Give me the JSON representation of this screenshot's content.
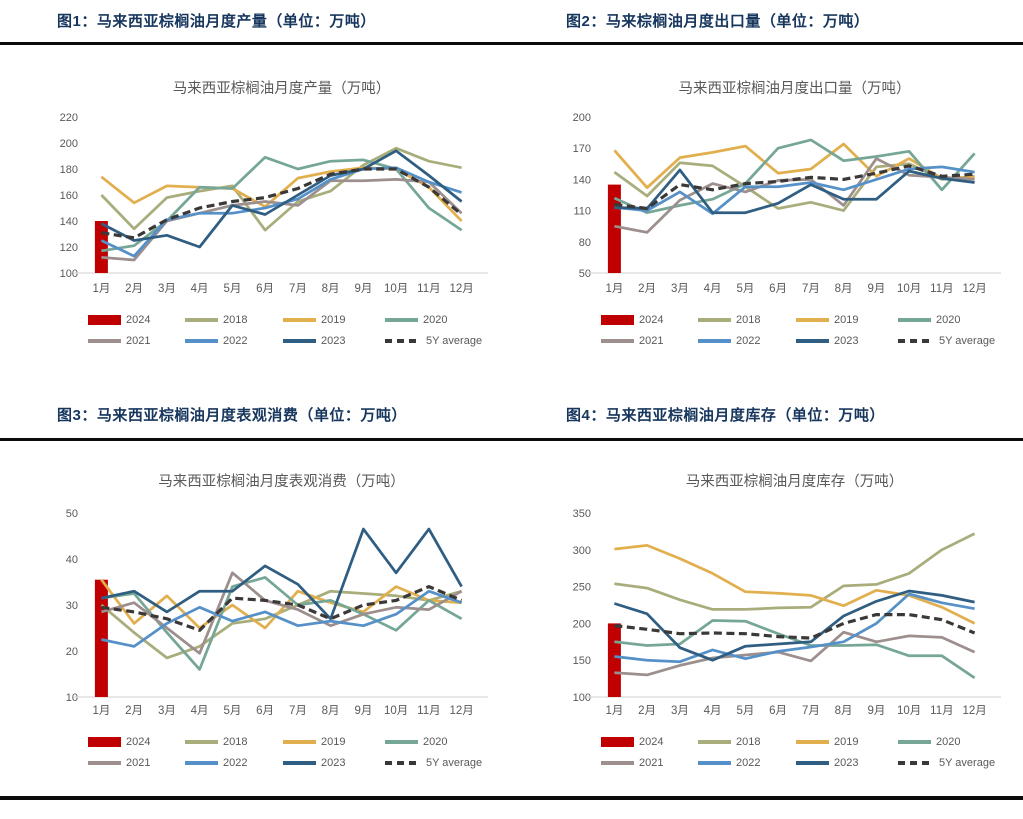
{
  "titles": {
    "fig1": "图1：马来西亚棕榈油月度产量（单位：万吨）",
    "fig2": "图2：马来棕榈油月度出口量（单位：万吨）",
    "fig3": "图3：马来西亚棕榈油月度表观消费（单位：万吨）",
    "fig4": "图4：马来西亚棕榈油月度库存（单位：万吨）"
  },
  "colors": {
    "title_navy": "#17365D",
    "rule_black": "#0B0B0B",
    "axis_text": "#595959",
    "axis_line": "#D9D9D9",
    "y2024": "#C00000",
    "y2018": "#A9AD7B",
    "y2019": "#E2AF4E",
    "y2020": "#76A796",
    "y2021": "#9C8F8D",
    "y2022": "#5591C8",
    "y2023": "#2F5E82",
    "avg5y": "#3B3838"
  },
  "legend_labels": [
    "2024",
    "2018",
    "2019",
    "2020",
    "2021",
    "2022",
    "2023",
    "5Y average"
  ],
  "chart_data": [
    {
      "type": "line",
      "title": "马来西亚棕榈油月度产量（万吨）",
      "categories": [
        "1月",
        "2月",
        "3月",
        "4月",
        "5月",
        "6月",
        "7月",
        "8月",
        "9月",
        "10月",
        "11月",
        "12月"
      ],
      "ylim": [
        100,
        220
      ],
      "ytick_step": 20,
      "grid": false,
      "legend_position": "bottom",
      "bar_series": {
        "name": "2024",
        "color": "#C00000",
        "values": [
          140
        ]
      },
      "series": [
        {
          "name": "2018",
          "color": "#A9AD7B",
          "values": [
            160,
            134,
            158,
            163,
            167,
            133,
            155,
            163,
            183,
            196,
            186,
            181
          ]
        },
        {
          "name": "2019",
          "color": "#E2AF4E",
          "values": [
            174,
            154,
            167,
            166,
            165,
            151,
            173,
            178,
            181,
            180,
            166,
            140
          ]
        },
        {
          "name": "2020",
          "color": "#76A796",
          "values": [
            117,
            121,
            140,
            166,
            165,
            189,
            180,
            186,
            187,
            180,
            150,
            133
          ]
        },
        {
          "name": "2021",
          "color": "#9C8F8D",
          "values": [
            112,
            110,
            140,
            146,
            152,
            155,
            152,
            171,
            171,
            172,
            170,
            146
          ]
        },
        {
          "name": "2022",
          "color": "#5591C8",
          "values": [
            125,
            113,
            141,
            146,
            146,
            150,
            157,
            172,
            180,
            181,
            170,
            162
          ]
        },
        {
          "name": "2023",
          "color": "#2F5E82",
          "values": [
            138,
            125,
            129,
            120,
            152,
            145,
            160,
            175,
            180,
            194,
            175,
            155
          ]
        },
        {
          "name": "5Y average",
          "color": "#3B3838",
          "dashed": true,
          "values": [
            131,
            127,
            141,
            150,
            155,
            158,
            165,
            176,
            180,
            180,
            166,
            145
          ]
        }
      ]
    },
    {
      "type": "line",
      "title": "马来西亚棕榈油月度出口量（万吨）",
      "categories": [
        "1月",
        "2月",
        "3月",
        "4月",
        "5月",
        "6月",
        "7月",
        "8月",
        "9月",
        "10月",
        "11月",
        "12月"
      ],
      "ylim": [
        50,
        200
      ],
      "ytick_step": 30,
      "grid": false,
      "legend_position": "bottom",
      "bar_series": {
        "name": "2024",
        "color": "#C00000",
        "values": [
          135
        ]
      },
      "series": [
        {
          "name": "2018",
          "color": "#A9AD7B",
          "values": [
            147,
            124,
            156,
            153,
            133,
            112,
            118,
            110,
            152,
            155,
            140,
            143
          ]
        },
        {
          "name": "2019",
          "color": "#E2AF4E",
          "values": [
            168,
            132,
            161,
            166,
            172,
            146,
            150,
            174,
            143,
            160,
            141,
            142
          ]
        },
        {
          "name": "2020",
          "color": "#76A796",
          "values": [
            122,
            108,
            115,
            121,
            136,
            170,
            178,
            158,
            162,
            167,
            130,
            165
          ]
        },
        {
          "name": "2021",
          "color": "#9C8F8D",
          "values": [
            95,
            89,
            120,
            136,
            128,
            139,
            140,
            115,
            160,
            144,
            142,
            140
          ]
        },
        {
          "name": "2022",
          "color": "#5591C8",
          "values": [
            113,
            110,
            128,
            107,
            133,
            133,
            137,
            130,
            140,
            150,
            152,
            147
          ]
        },
        {
          "name": "2023",
          "color": "#2F5E82",
          "values": [
            113,
            112,
            149,
            108,
            108,
            117,
            135,
            121,
            121,
            148,
            141,
            137
          ]
        },
        {
          "name": "5Y average",
          "color": "#3B3838",
          "dashed": true,
          "values": [
            116,
            112,
            135,
            130,
            136,
            138,
            142,
            140,
            146,
            153,
            143,
            145
          ]
        }
      ]
    },
    {
      "type": "line",
      "title": "马来西亚棕榈油月度表观消费（万吨）",
      "categories": [
        "1月",
        "2月",
        "3月",
        "4月",
        "5月",
        "6月",
        "7月",
        "8月",
        "9月",
        "10月",
        "11月",
        "12月"
      ],
      "ylim": [
        10,
        50
      ],
      "ytick_step": 10,
      "grid": false,
      "legend_position": "bottom",
      "bar_series": {
        "name": "2024",
        "color": "#C00000",
        "values": [
          35.5
        ]
      },
      "series": [
        {
          "name": "2018",
          "color": "#A9AD7B",
          "values": [
            30,
            24,
            18.5,
            21,
            26,
            27,
            30,
            33,
            32.5,
            32,
            31,
            33
          ]
        },
        {
          "name": "2019",
          "color": "#E2AF4E",
          "values": [
            35.5,
            26,
            32,
            25,
            30,
            25,
            33,
            30.5,
            28.5,
            34,
            31,
            30.5
          ]
        },
        {
          "name": "2020",
          "color": "#76A796",
          "values": [
            31.5,
            32.5,
            24,
            16,
            34,
            36,
            30,
            31,
            28,
            24.5,
            31,
            27
          ]
        },
        {
          "name": "2021",
          "color": "#9C8F8D",
          "values": [
            28.5,
            30.5,
            25,
            19.5,
            37,
            31,
            29,
            25.5,
            28,
            29.5,
            29,
            33
          ]
        },
        {
          "name": "2022",
          "color": "#5591C8",
          "values": [
            22.5,
            21,
            26,
            29.5,
            26.5,
            28.5,
            25.5,
            26.5,
            25.5,
            28,
            33,
            30.5
          ]
        },
        {
          "name": "2023",
          "color": "#2F5E82",
          "values": [
            31.5,
            33,
            28.5,
            33,
            33,
            38.5,
            34.5,
            27,
            46.5,
            37,
            46.5,
            34
          ]
        },
        {
          "name": "5Y average",
          "color": "#3B3838",
          "dashed": true,
          "values": [
            29.5,
            28.5,
            27,
            24.5,
            31.5,
            31,
            30,
            27,
            30,
            31,
            34,
            31
          ]
        }
      ]
    },
    {
      "type": "line",
      "title": "马来西亚棕榈油月度库存（万吨）",
      "categories": [
        "1月",
        "2月",
        "3月",
        "4月",
        "5月",
        "6月",
        "7月",
        "8月",
        "9月",
        "10月",
        "11月",
        "12月"
      ],
      "ylim": [
        100,
        350
      ],
      "ytick_step": 50,
      "grid": false,
      "legend_position": "bottom",
      "bar_series": {
        "name": "2024",
        "color": "#C00000",
        "values": [
          200
        ]
      },
      "series": [
        {
          "name": "2018",
          "color": "#A9AD7B",
          "values": [
            254,
            248,
            232,
            219,
            219,
            221,
            222,
            251,
            253,
            268,
            300,
            322
          ]
        },
        {
          "name": "2019",
          "color": "#E2AF4E",
          "values": [
            301,
            306,
            288,
            268,
            243,
            241,
            238,
            224,
            245,
            238,
            222,
            200
          ]
        },
        {
          "name": "2020",
          "color": "#76A796",
          "values": [
            175,
            170,
            172,
            204,
            203,
            186,
            170,
            170,
            171,
            156,
            156,
            126
          ]
        },
        {
          "name": "2021",
          "color": "#9C8F8D",
          "values": [
            133,
            130,
            143,
            153,
            157,
            161,
            149,
            188,
            175,
            183,
            181,
            161
          ]
        },
        {
          "name": "2022",
          "color": "#5591C8",
          "values": [
            155,
            150,
            148,
            164,
            152,
            162,
            168,
            175,
            200,
            240,
            228,
            220
          ]
        },
        {
          "name": "2023",
          "color": "#2F5E82",
          "values": [
            227,
            213,
            167,
            150,
            169,
            172,
            175,
            210,
            230,
            244,
            238,
            229
          ]
        },
        {
          "name": "5Y average",
          "color": "#3B3838",
          "dashed": true,
          "values": [
            197,
            192,
            186,
            187,
            186,
            182,
            180,
            200,
            212,
            212,
            205,
            187
          ]
        }
      ]
    }
  ]
}
